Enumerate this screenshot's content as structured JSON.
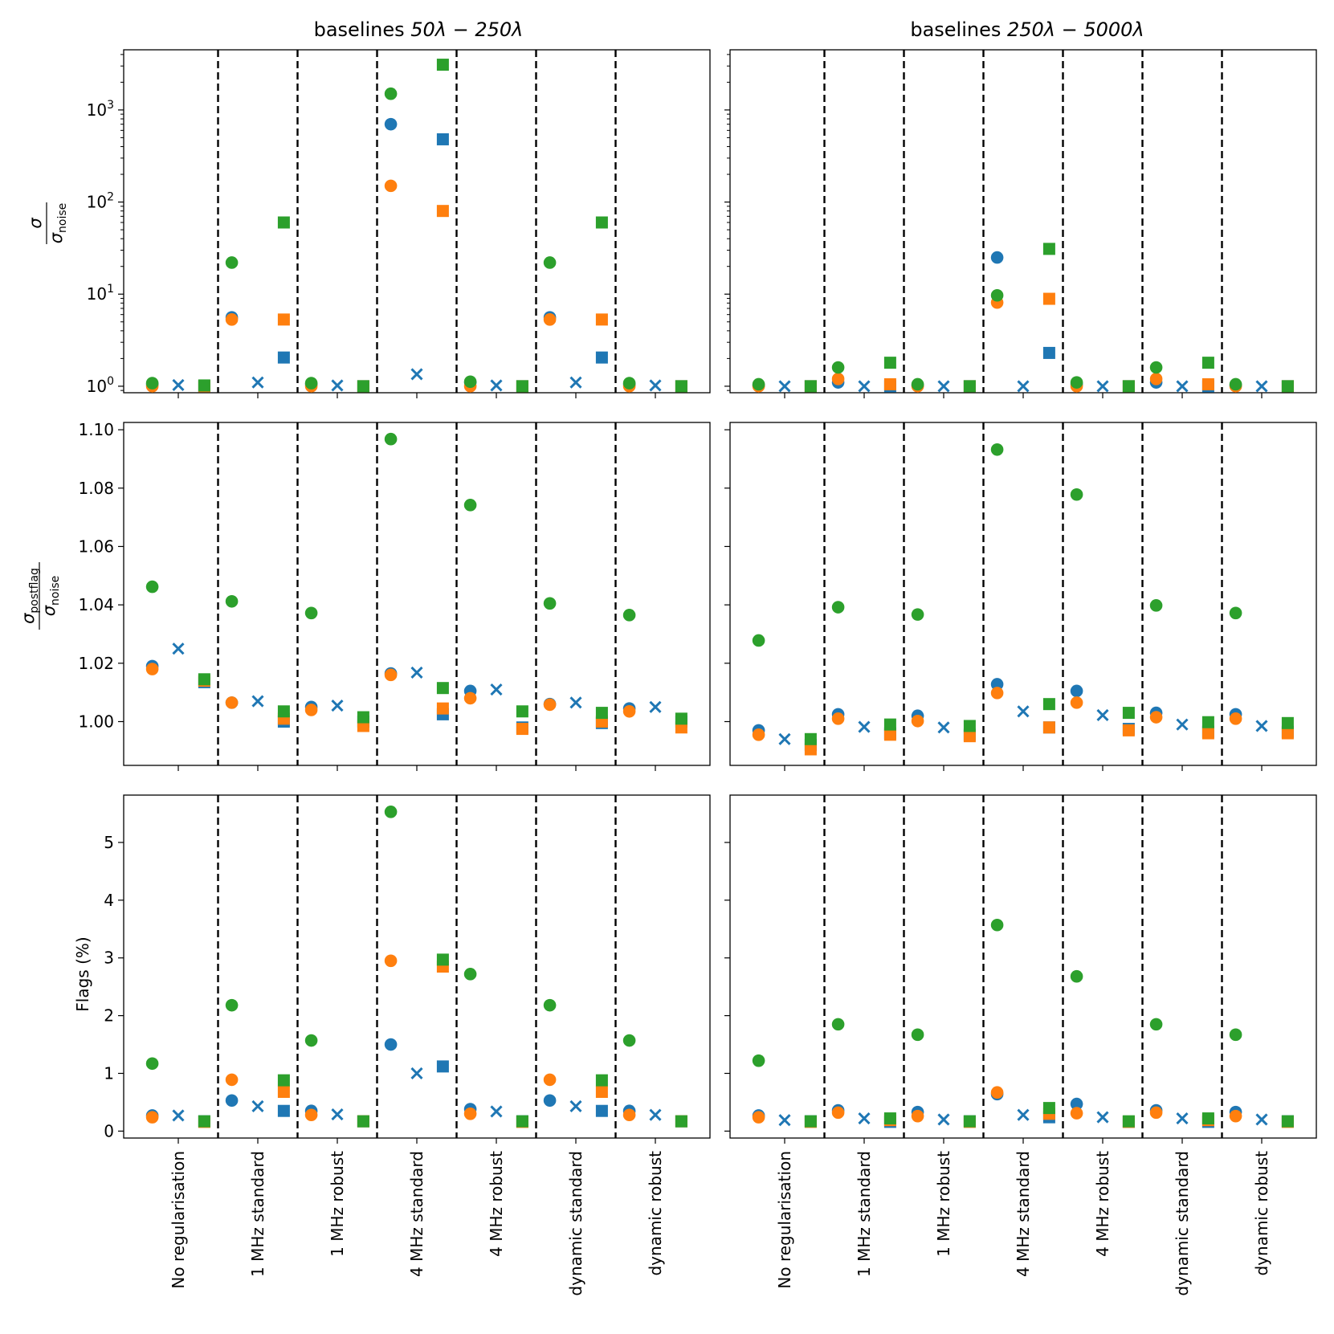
{
  "colors": {
    "blue": "#1f77b4",
    "orange": "#ff7f0e",
    "green": "#2ca02c"
  },
  "columns": [
    {
      "title_prefix": "baselines ",
      "title_math": "50λ − 250λ"
    },
    {
      "title_prefix": "baselines ",
      "title_math": "250λ − 5000λ"
    }
  ],
  "row_labels": {
    "sigma": {
      "num": "σ",
      "den": "σ",
      "den_sub": "noise"
    },
    "sigma_postflag": {
      "num": "σ",
      "num_sub": "postflag",
      "den": "σ",
      "den_sub": "noise"
    },
    "flags": "Flags (%)"
  },
  "chart_data": [
    {
      "type": "scatter",
      "panel": "sigma-left",
      "column": 0,
      "scale": "log",
      "ylim": [
        0.85,
        4500
      ],
      "yticks": [
        {
          "value": 1,
          "base": "10",
          "exp": "0"
        },
        {
          "value": 10,
          "base": "10",
          "exp": "1"
        },
        {
          "value": 100,
          "base": "10",
          "exp": "2"
        },
        {
          "value": 1000,
          "base": "10",
          "exp": "3"
        }
      ],
      "categories": [
        "No regularisation",
        "1 MHz standard",
        "1 MHz robust",
        "4 MHz standard",
        "4 MHz robust",
        "dynamic standard",
        "dynamic robust"
      ],
      "series": [
        {
          "marker": "circle",
          "color": "blue",
          "offset": -1,
          "values": [
            1.05,
            5.6,
            1.05,
            700,
            1.1,
            5.6,
            1.05
          ]
        },
        {
          "marker": "circle",
          "color": "orange",
          "offset": -1,
          "values": [
            1.0,
            5.3,
            1.0,
            150,
            1.0,
            5.3,
            1.0
          ]
        },
        {
          "marker": "circle",
          "color": "green",
          "offset": -1,
          "values": [
            1.08,
            22,
            1.08,
            1500,
            1.12,
            22,
            1.08
          ]
        },
        {
          "marker": "x",
          "color": "blue",
          "offset": 0,
          "values": [
            1.03,
            1.1,
            1.02,
            1.35,
            1.02,
            1.1,
            1.02
          ]
        },
        {
          "marker": "square",
          "color": "blue",
          "offset": 1,
          "values": [
            1.0,
            2.05,
            1.0,
            480,
            1.0,
            2.05,
            1.0
          ]
        },
        {
          "marker": "square",
          "color": "orange",
          "offset": 1,
          "values": [
            1.0,
            5.3,
            1.0,
            80,
            1.0,
            5.3,
            1.0
          ]
        },
        {
          "marker": "square",
          "color": "green",
          "offset": 1,
          "values": [
            1.02,
            60,
            1.0,
            3100,
            1.0,
            60,
            1.0
          ]
        }
      ]
    },
    {
      "type": "scatter",
      "panel": "sigma-right",
      "column": 1,
      "scale": "log",
      "ylim": [
        0.85,
        4500
      ],
      "yticks": [
        {
          "value": 1,
          "base": "",
          "exp": ""
        },
        {
          "value": 10,
          "base": "",
          "exp": ""
        },
        {
          "value": 100,
          "base": "",
          "exp": ""
        },
        {
          "value": 1000,
          "base": "",
          "exp": ""
        }
      ],
      "categories": [
        "No regularisation",
        "1 MHz standard",
        "1 MHz robust",
        "4 MHz standard",
        "4 MHz robust",
        "dynamic standard",
        "dynamic robust"
      ],
      "series": [
        {
          "marker": "circle",
          "color": "blue",
          "offset": -1,
          "values": [
            1.02,
            1.1,
            1.02,
            25,
            1.05,
            1.1,
            1.02
          ]
        },
        {
          "marker": "circle",
          "color": "orange",
          "offset": -1,
          "values": [
            1.0,
            1.2,
            1.0,
            8.1,
            1.0,
            1.2,
            1.0
          ]
        },
        {
          "marker": "circle",
          "color": "green",
          "offset": -1,
          "values": [
            1.05,
            1.6,
            1.05,
            9.7,
            1.1,
            1.6,
            1.05
          ]
        },
        {
          "marker": "x",
          "color": "blue",
          "offset": 0,
          "values": [
            1.0,
            1.0,
            1.0,
            1.0,
            1.0,
            1.0,
            1.0
          ]
        },
        {
          "marker": "square",
          "color": "blue",
          "offset": 1,
          "values": [
            1.0,
            1.0,
            1.0,
            2.3,
            1.0,
            1.0,
            1.0
          ]
        },
        {
          "marker": "square",
          "color": "orange",
          "offset": 1,
          "values": [
            1.0,
            1.05,
            1.0,
            8.9,
            1.0,
            1.05,
            1.0
          ]
        },
        {
          "marker": "square",
          "color": "green",
          "offset": 1,
          "values": [
            1.0,
            1.8,
            1.0,
            31,
            1.0,
            1.8,
            1.0
          ]
        }
      ]
    },
    {
      "type": "scatter",
      "panel": "postflag-left",
      "column": 0,
      "scale": "linear",
      "ylim": [
        0.985,
        1.1025
      ],
      "yticks": [
        {
          "value": 1.0,
          "label": "1.00"
        },
        {
          "value": 1.02,
          "label": "1.02"
        },
        {
          "value": 1.04,
          "label": "1.04"
        },
        {
          "value": 1.06,
          "label": "1.06"
        },
        {
          "value": 1.08,
          "label": "1.08"
        },
        {
          "value": 1.1,
          "label": "1.10"
        }
      ],
      "categories": [
        "No regularisation",
        "1 MHz standard",
        "1 MHz robust",
        "4 MHz standard",
        "4 MHz robust",
        "dynamic standard",
        "dynamic robust"
      ],
      "series": [
        {
          "marker": "circle",
          "color": "blue",
          "offset": -1,
          "values": [
            1.019,
            1.0065,
            1.005,
            1.0165,
            1.0105,
            1.006,
            1.0045
          ]
        },
        {
          "marker": "circle",
          "color": "orange",
          "offset": -1,
          "values": [
            1.018,
            1.0065,
            1.004,
            1.016,
            1.008,
            1.0058,
            1.0035
          ]
        },
        {
          "marker": "circle",
          "color": "green",
          "offset": -1,
          "values": [
            1.0462,
            1.0412,
            1.0372,
            1.0968,
            1.0742,
            1.0405,
            1.0365
          ]
        },
        {
          "marker": "x",
          "color": "blue",
          "offset": 0,
          "values": [
            1.025,
            1.007,
            1.0055,
            1.0168,
            1.011,
            1.0065,
            1.005
          ]
        },
        {
          "marker": "square",
          "color": "blue",
          "offset": 1,
          "values": [
            1.0135,
            1.0,
            1.0,
            1.0025,
            0.998,
            0.9995,
            1.0
          ]
        },
        {
          "marker": "square",
          "color": "orange",
          "offset": 1,
          "values": [
            1.014,
            1.001,
            0.9985,
            1.0045,
            0.9975,
            1.0,
            0.998
          ]
        },
        {
          "marker": "square",
          "color": "green",
          "offset": 1,
          "values": [
            1.0145,
            1.0035,
            1.0015,
            1.0115,
            1.0035,
            1.003,
            1.001
          ]
        }
      ]
    },
    {
      "type": "scatter",
      "panel": "postflag-right",
      "column": 1,
      "scale": "linear",
      "ylim": [
        0.985,
        1.1025
      ],
      "yticks": [
        {
          "value": 1.0,
          "label": ""
        },
        {
          "value": 1.02,
          "label": ""
        },
        {
          "value": 1.04,
          "label": ""
        },
        {
          "value": 1.06,
          "label": ""
        },
        {
          "value": 1.08,
          "label": ""
        },
        {
          "value": 1.1,
          "label": ""
        }
      ],
      "categories": [
        "No regularisation",
        "1 MHz standard",
        "1 MHz robust",
        "4 MHz standard",
        "4 MHz robust",
        "dynamic standard",
        "dynamic robust"
      ],
      "series": [
        {
          "marker": "circle",
          "color": "blue",
          "offset": -1,
          "values": [
            0.997,
            1.0025,
            1.002,
            1.0128,
            1.0105,
            1.003,
            1.0025
          ]
        },
        {
          "marker": "circle",
          "color": "orange",
          "offset": -1,
          "values": [
            0.9955,
            1.001,
            1.0002,
            1.0098,
            1.0065,
            1.0015,
            1.001
          ]
        },
        {
          "marker": "circle",
          "color": "green",
          "offset": -1,
          "values": [
            1.0278,
            1.0392,
            1.0367,
            1.0932,
            1.0778,
            1.0398,
            1.0372
          ]
        },
        {
          "marker": "x",
          "color": "blue",
          "offset": 0,
          "values": [
            0.994,
            0.9982,
            0.998,
            1.0035,
            1.0022,
            0.999,
            0.9985
          ]
        },
        {
          "marker": "square",
          "color": "blue",
          "offset": 1,
          "values": [
            0.992,
            0.996,
            0.9955,
            0.998,
            0.9975,
            0.9965,
            0.9965
          ]
        },
        {
          "marker": "square",
          "color": "orange",
          "offset": 1,
          "values": [
            0.9905,
            0.9955,
            0.995,
            0.998,
            0.997,
            0.996,
            0.996
          ]
        },
        {
          "marker": "square",
          "color": "green",
          "offset": 1,
          "values": [
            0.994,
            0.999,
            0.9985,
            1.006,
            1.003,
            0.9998,
            0.9995
          ]
        }
      ]
    },
    {
      "type": "scatter",
      "panel": "flags-left",
      "column": 0,
      "scale": "linear",
      "ylim": [
        -0.12,
        5.82
      ],
      "yticks": [
        {
          "value": 0,
          "label": "0"
        },
        {
          "value": 1,
          "label": "1"
        },
        {
          "value": 2,
          "label": "2"
        },
        {
          "value": 3,
          "label": "3"
        },
        {
          "value": 4,
          "label": "4"
        },
        {
          "value": 5,
          "label": "5"
        }
      ],
      "categories": [
        "No regularisation",
        "1 MHz standard",
        "1 MHz robust",
        "4 MHz standard",
        "4 MHz robust",
        "dynamic standard",
        "dynamic robust"
      ],
      "series": [
        {
          "marker": "circle",
          "color": "blue",
          "offset": -1,
          "values": [
            0.27,
            0.53,
            0.35,
            1.5,
            0.38,
            0.53,
            0.35
          ]
        },
        {
          "marker": "circle",
          "color": "orange",
          "offset": -1,
          "values": [
            0.24,
            0.89,
            0.28,
            2.95,
            0.3,
            0.89,
            0.28
          ]
        },
        {
          "marker": "circle",
          "color": "green",
          "offset": -1,
          "values": [
            1.17,
            2.18,
            1.57,
            5.53,
            2.72,
            2.18,
            1.57
          ]
        },
        {
          "marker": "x",
          "color": "blue",
          "offset": 0,
          "values": [
            0.27,
            0.43,
            0.29,
            1.0,
            0.34,
            0.43,
            0.28
          ]
        },
        {
          "marker": "square",
          "color": "blue",
          "offset": 1,
          "values": [
            0.17,
            0.35,
            0.17,
            1.12,
            0.17,
            0.35,
            0.17
          ]
        },
        {
          "marker": "square",
          "color": "orange",
          "offset": 1,
          "values": [
            0.16,
            0.68,
            0.17,
            2.85,
            0.16,
            0.68,
            0.17
          ]
        },
        {
          "marker": "square",
          "color": "green",
          "offset": 1,
          "values": [
            0.17,
            0.88,
            0.17,
            2.97,
            0.17,
            0.88,
            0.17
          ]
        }
      ]
    },
    {
      "type": "scatter",
      "panel": "flags-right",
      "column": 1,
      "scale": "linear",
      "ylim": [
        -0.12,
        5.82
      ],
      "yticks": [
        {
          "value": 0,
          "label": ""
        },
        {
          "value": 1,
          "label": ""
        },
        {
          "value": 2,
          "label": ""
        },
        {
          "value": 3,
          "label": ""
        },
        {
          "value": 4,
          "label": ""
        },
        {
          "value": 5,
          "label": ""
        }
      ],
      "categories": [
        "No regularisation",
        "1 MHz standard",
        "1 MHz robust",
        "4 MHz standard",
        "4 MHz robust",
        "dynamic standard",
        "dynamic robust"
      ],
      "series": [
        {
          "marker": "circle",
          "color": "blue",
          "offset": -1,
          "values": [
            0.27,
            0.36,
            0.33,
            0.64,
            0.47,
            0.36,
            0.33
          ]
        },
        {
          "marker": "circle",
          "color": "orange",
          "offset": -1,
          "values": [
            0.24,
            0.32,
            0.26,
            0.67,
            0.31,
            0.32,
            0.26
          ]
        },
        {
          "marker": "circle",
          "color": "green",
          "offset": -1,
          "values": [
            1.22,
            1.85,
            1.67,
            3.57,
            2.68,
            1.85,
            1.67
          ]
        },
        {
          "marker": "x",
          "color": "blue",
          "offset": 0,
          "values": [
            0.19,
            0.22,
            0.2,
            0.28,
            0.24,
            0.22,
            0.2
          ]
        },
        {
          "marker": "square",
          "color": "blue",
          "offset": 1,
          "values": [
            0.17,
            0.16,
            0.17,
            0.24,
            0.16,
            0.16,
            0.17
          ]
        },
        {
          "marker": "square",
          "color": "orange",
          "offset": 1,
          "values": [
            0.16,
            0.19,
            0.16,
            0.3,
            0.16,
            0.19,
            0.16
          ]
        },
        {
          "marker": "square",
          "color": "green",
          "offset": 1,
          "values": [
            0.17,
            0.22,
            0.17,
            0.4,
            0.17,
            0.22,
            0.17
          ]
        }
      ]
    }
  ]
}
